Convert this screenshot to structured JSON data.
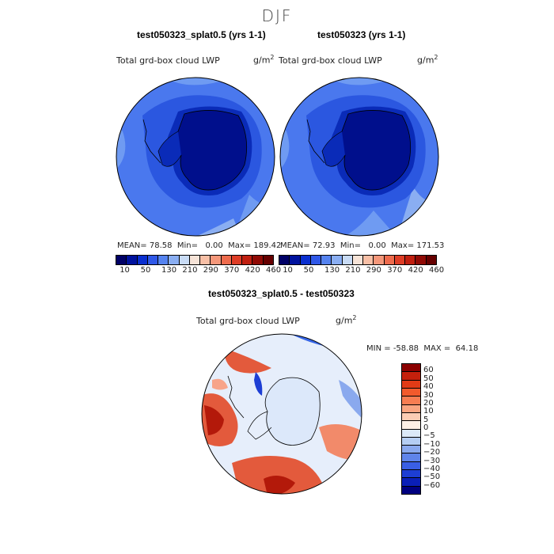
{
  "title": "DJF",
  "panels": {
    "left": {
      "title": "test050323_splat0.5 (yrs 1-1)",
      "variable": "Total grd-box cloud LWP",
      "units_base": "g/m",
      "units_exp": "2",
      "mean_label": "MEAN=",
      "mean": "78.58",
      "min_label": "Min=",
      "min": "0.00",
      "max_label": "Max=",
      "max": "189.42"
    },
    "right": {
      "title": "test050323 (yrs 1-1)",
      "variable": "Total grd-box cloud LWP",
      "units_base": "g/m",
      "units_exp": "2",
      "mean_label": "MEAN=",
      "mean": "72.93",
      "min_label": "Min=",
      "min": "0.00",
      "max_label": "Max=",
      "max": "171.53"
    },
    "diff": {
      "title": "test050323_splat0.5 - test050323",
      "variable": "Total grd-box cloud LWP",
      "units_base": "g/m",
      "units_exp": "2",
      "min_label": "MIN =",
      "min": "-58.88",
      "max_label": "MAX =",
      "max": "64.18"
    }
  },
  "colorbar_top": {
    "colors": [
      "#000066",
      "#00129e",
      "#0a2fd0",
      "#2f58e8",
      "#5583f0",
      "#8aaef2",
      "#c8dbf5",
      "#f6e3d7",
      "#f7bfa6",
      "#f4977a",
      "#ee6b4d",
      "#de3d26",
      "#c01f10",
      "#900a05",
      "#660000"
    ],
    "tick_labels": [
      "10",
      "50",
      "130",
      "210",
      "290",
      "370",
      "420",
      "460"
    ]
  },
  "colorbar_diff": {
    "colors": [
      "#8b0000",
      "#c5200c",
      "#e23b16",
      "#f25a2c",
      "#f77d52",
      "#f9a581",
      "#fbcdb4",
      "#fdf0e6",
      "#dbe9f8",
      "#b5cef3",
      "#8aa9ee",
      "#5f84ea",
      "#3a5fe4",
      "#1d3ed4",
      "#0a1fb8",
      "#000080"
    ],
    "labels": [
      "60",
      "50",
      "40",
      "30",
      "20",
      "10",
      "5",
      "0",
      "−5",
      "−10",
      "−20",
      "−30",
      "−40",
      "−50",
      "−60"
    ]
  },
  "map_colors": {
    "ocean_light": "#6f9bf2",
    "ocean_mid": "#4a78ee",
    "ocean_dark": "#2b57e0",
    "ice_deep": "#000f8c",
    "ice_edge": "#0a2bb8",
    "diff_bg": "#e6eefb",
    "diff_red": "#e35a3c",
    "diff_deepred": "#b3190a",
    "diff_blue": "#3766e6",
    "diff_land": "#dce8fa"
  }
}
